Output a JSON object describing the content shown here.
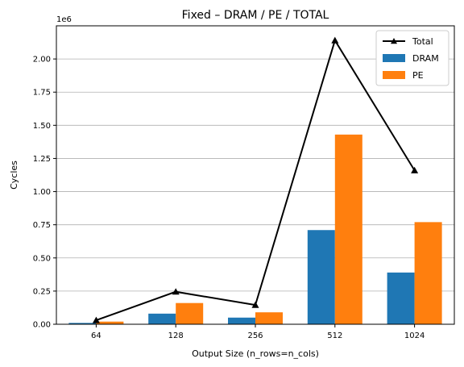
{
  "chart_data": {
    "type": "bar",
    "title": "Fixed – DRAM / PE / TOTAL",
    "xlabel": "Output Size (n_rows=n_cols)",
    "ylabel": "Cycles",
    "y_offset_label": "1e6",
    "categories": [
      "64",
      "128",
      "256",
      "512",
      "1024"
    ],
    "y_tick_labels": [
      "0.00",
      "0.25",
      "0.50",
      "0.75",
      "1.00",
      "1.25",
      "1.50",
      "1.75",
      "2.00"
    ],
    "y_ticks": [
      0,
      0.25,
      0.5,
      0.75,
      1.0,
      1.25,
      1.5,
      1.75,
      2.0
    ],
    "ylim": [
      0,
      2.25
    ],
    "grid": "y",
    "legend_position": "top-right",
    "series": [
      {
        "name": "DRAM",
        "kind": "bar",
        "color": "#1f77b4",
        "values": [
          0.01,
          0.08,
          0.05,
          0.71,
          0.39
        ]
      },
      {
        "name": "PE",
        "kind": "bar",
        "color": "#ff7f0e",
        "values": [
          0.02,
          0.16,
          0.09,
          1.43,
          0.77
        ]
      },
      {
        "name": "Total",
        "kind": "line",
        "color": "#000000",
        "marker": "triangle",
        "values": [
          0.03,
          0.245,
          0.145,
          2.14,
          1.16
        ]
      }
    ]
  }
}
